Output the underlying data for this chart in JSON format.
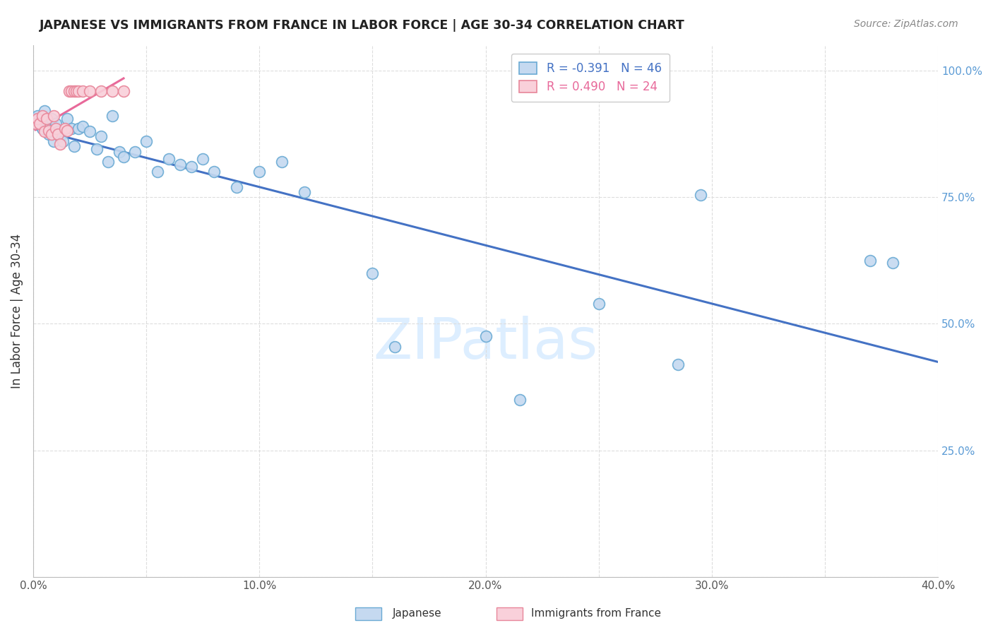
{
  "title": "JAPANESE VS IMMIGRANTS FROM FRANCE IN LABOR FORCE | AGE 30-34 CORRELATION CHART",
  "source": "Source: ZipAtlas.com",
  "ylabel": "In Labor Force | Age 30-34",
  "xlim": [
    0.0,
    0.4
  ],
  "ylim": [
    0.0,
    1.05
  ],
  "xtick_positions": [
    0.0,
    0.05,
    0.1,
    0.15,
    0.2,
    0.25,
    0.3,
    0.35,
    0.4
  ],
  "xticklabels": [
    "0.0%",
    "",
    "10.0%",
    "",
    "20.0%",
    "",
    "30.0%",
    "",
    "40.0%"
  ],
  "yticks_right": [
    1.0,
    0.75,
    0.5,
    0.25
  ],
  "ytick_labels_right": [
    "100.0%",
    "75.0%",
    "50.0%",
    "25.0%"
  ],
  "blue_color": "#c5d9f0",
  "blue_edge": "#6aaad4",
  "pink_color": "#f9d0da",
  "pink_edge": "#e8869a",
  "trend_blue": "#4472c4",
  "trend_pink": "#e8699a",
  "blue_label": "R = -0.391   N = 46",
  "pink_label": "R = 0.490   N = 24",
  "blue_legend_text_color": "#4472c4",
  "pink_legend_text_color": "#e8699a",
  "blue_x": [
    0.001,
    0.002,
    0.003,
    0.004,
    0.005,
    0.006,
    0.007,
    0.008,
    0.009,
    0.01,
    0.011,
    0.012,
    0.013,
    0.015,
    0.017,
    0.018,
    0.02,
    0.022,
    0.025,
    0.028,
    0.03,
    0.033,
    0.035,
    0.038,
    0.04,
    0.045,
    0.05,
    0.055,
    0.06,
    0.065,
    0.07,
    0.075,
    0.08,
    0.09,
    0.1,
    0.11,
    0.12,
    0.15,
    0.16,
    0.2,
    0.215,
    0.25,
    0.285,
    0.295,
    0.37,
    0.38
  ],
  "blue_y": [
    0.905,
    0.91,
    0.895,
    0.885,
    0.92,
    0.9,
    0.875,
    0.905,
    0.86,
    0.895,
    0.88,
    0.87,
    0.86,
    0.905,
    0.885,
    0.85,
    0.885,
    0.89,
    0.88,
    0.845,
    0.87,
    0.82,
    0.91,
    0.84,
    0.83,
    0.84,
    0.86,
    0.8,
    0.825,
    0.815,
    0.81,
    0.825,
    0.8,
    0.77,
    0.8,
    0.82,
    0.76,
    0.6,
    0.455,
    0.475,
    0.35,
    0.54,
    0.42,
    0.755,
    0.625,
    0.62
  ],
  "pink_x": [
    0.001,
    0.002,
    0.003,
    0.004,
    0.005,
    0.006,
    0.007,
    0.008,
    0.009,
    0.01,
    0.011,
    0.012,
    0.014,
    0.015,
    0.016,
    0.017,
    0.018,
    0.019,
    0.02,
    0.022,
    0.025,
    0.03,
    0.035,
    0.04
  ],
  "pink_y": [
    0.895,
    0.905,
    0.895,
    0.91,
    0.88,
    0.905,
    0.882,
    0.875,
    0.91,
    0.885,
    0.875,
    0.855,
    0.885,
    0.882,
    0.96,
    0.96,
    0.96,
    0.96,
    0.96,
    0.96,
    0.96,
    0.96,
    0.96,
    0.96
  ],
  "watermark_text": "ZIPatlas",
  "watermark_color": "#ddeeff",
  "background_color": "#ffffff",
  "grid_color": "#dddddd",
  "bottom_legend_label_blue": "Japanese",
  "bottom_legend_label_pink": "Immigrants from France"
}
